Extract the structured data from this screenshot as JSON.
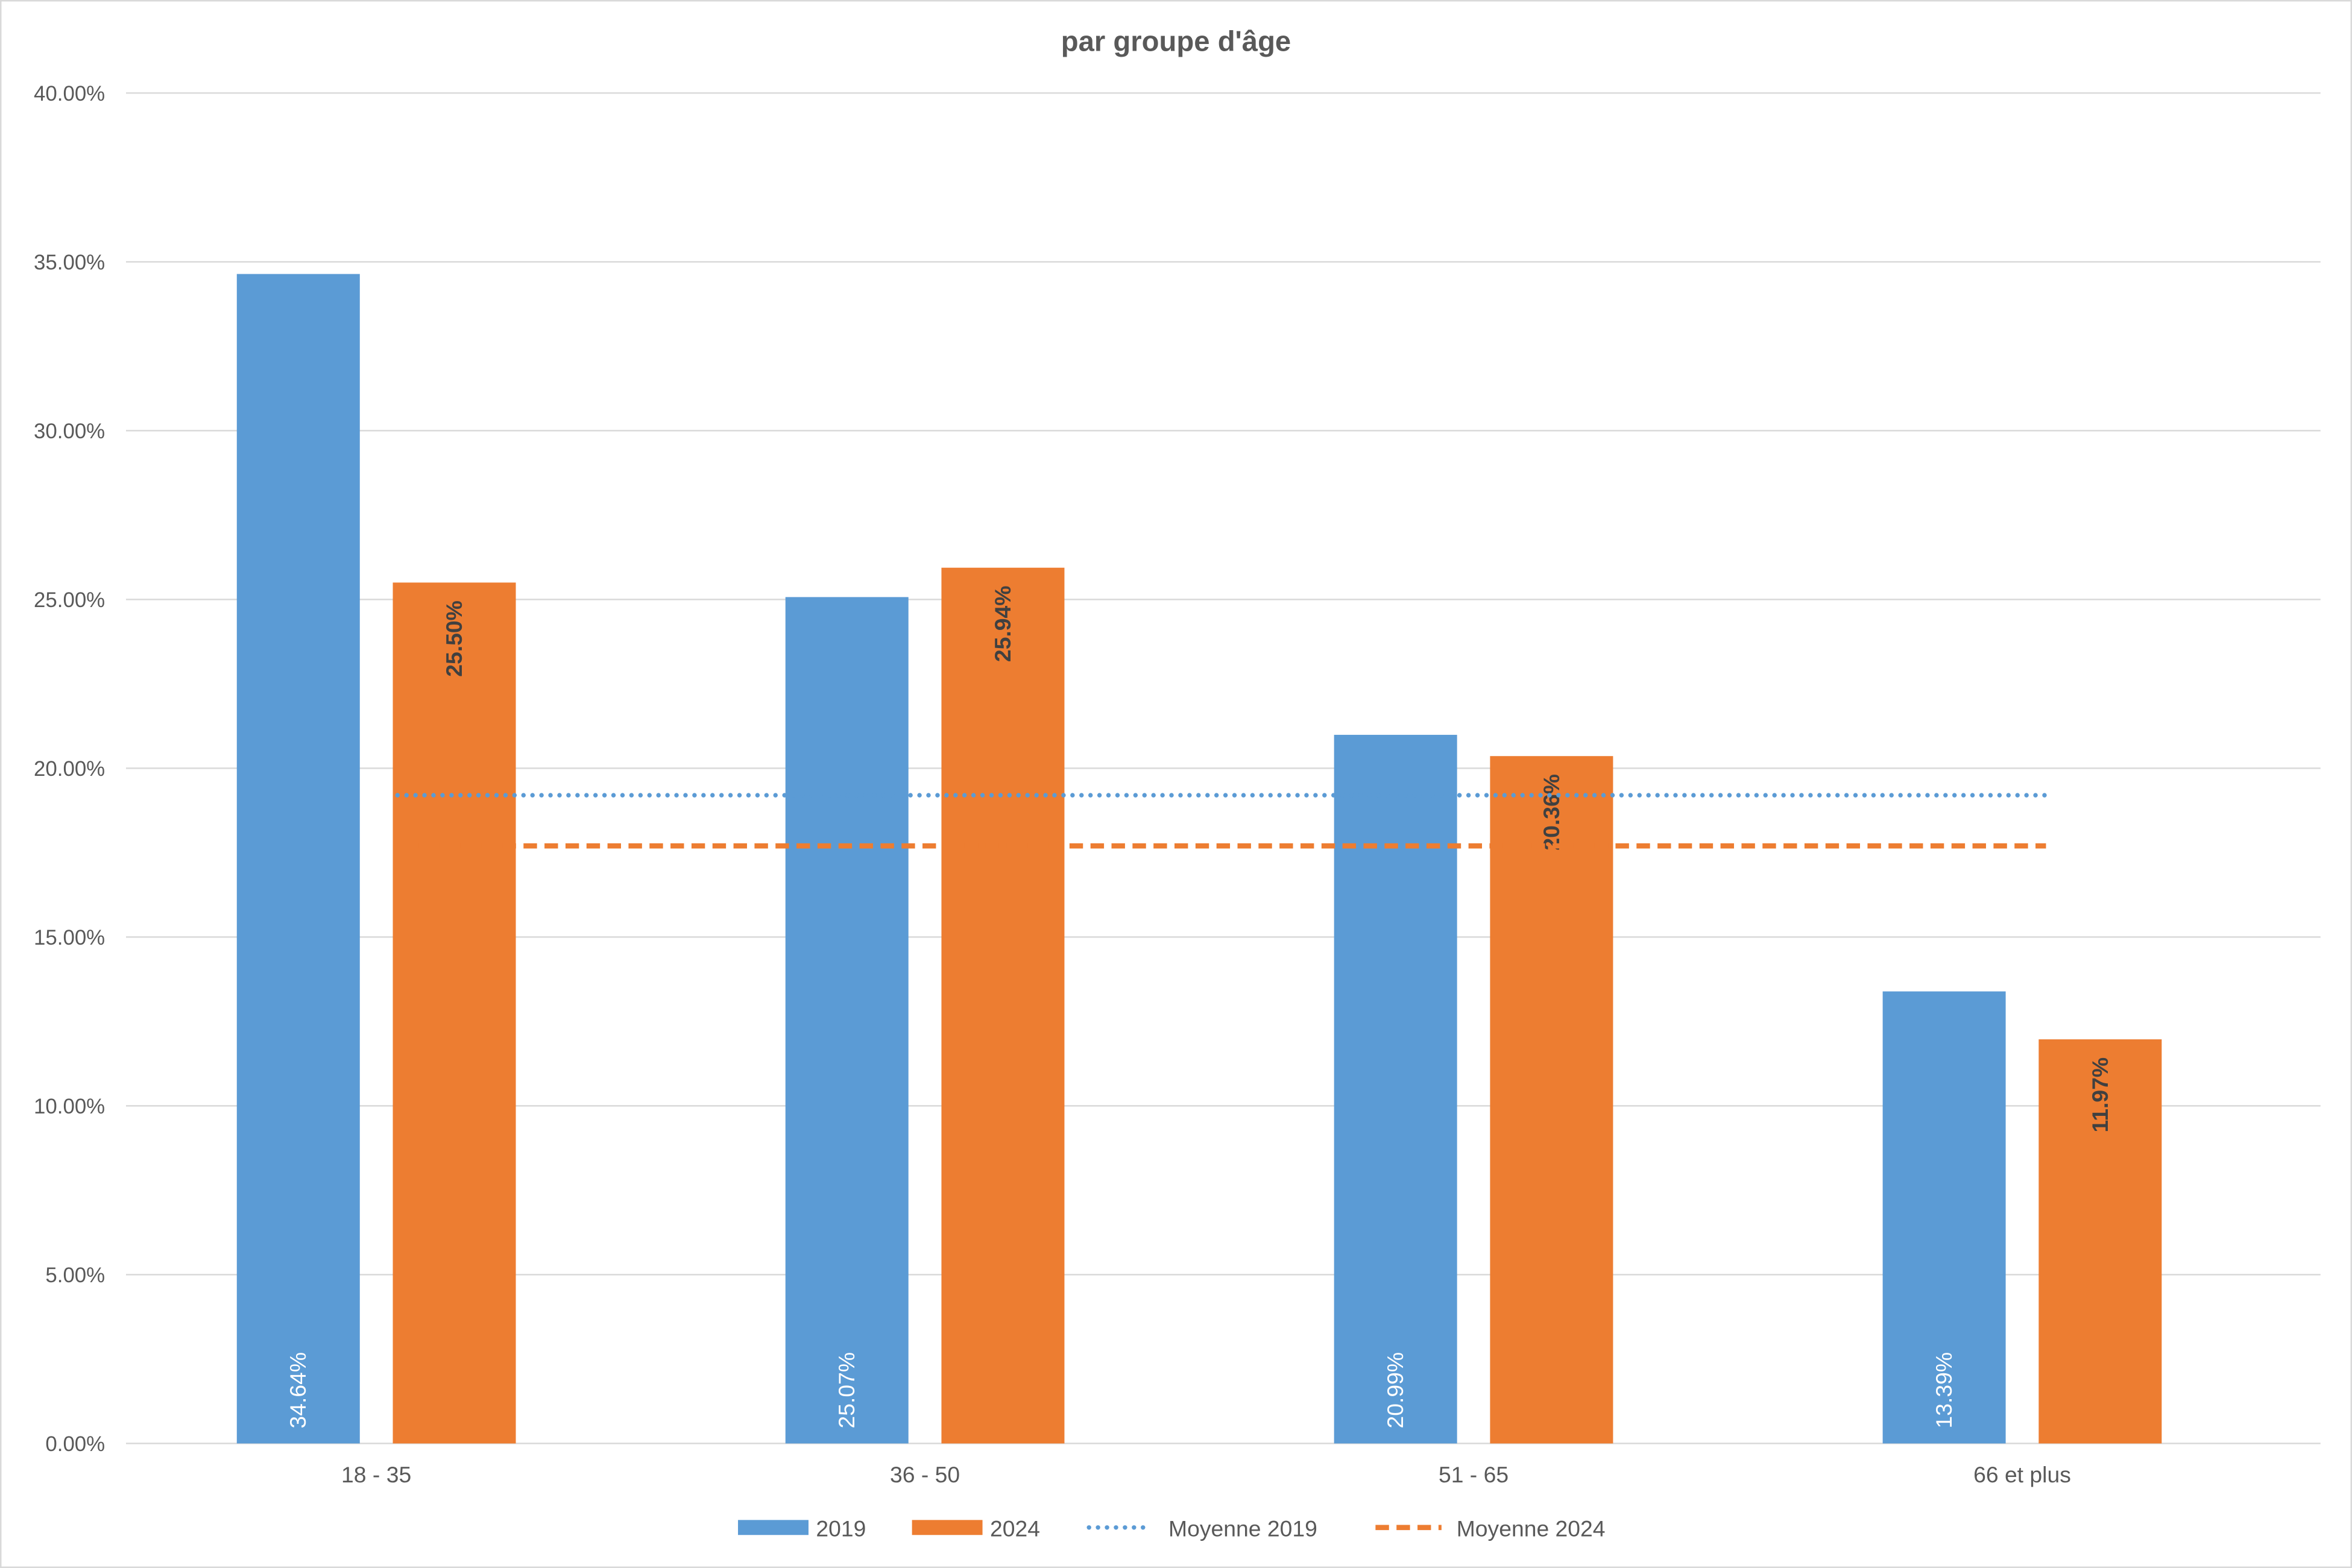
{
  "chart_data": {
    "type": "bar",
    "title": "par groupe d'âge",
    "categories": [
      "18 - 35",
      "36 - 50",
      "51 - 65",
      "66 et plus"
    ],
    "series": [
      {
        "name": "2019",
        "values": [
          34.64,
          25.07,
          20.99,
          13.39
        ],
        "labels": [
          "34.64%",
          "25.07%",
          "20.99%",
          "13.39%"
        ],
        "color": "#5B9BD5"
      },
      {
        "name": "2024",
        "values": [
          25.5,
          25.94,
          20.36,
          11.97
        ],
        "labels": [
          "25.50%",
          "25.94%",
          "20.36%",
          "11.97%"
        ],
        "color": "#ED7D31"
      }
    ],
    "lines": [
      {
        "name": "Moyenne 2019",
        "value": 19.2,
        "style": "dotted",
        "color": "#5B9BD5"
      },
      {
        "name": "Moyenne 2024",
        "value": 17.7,
        "style": "dashed",
        "color": "#ED7D31"
      }
    ],
    "ylim": [
      0,
      40
    ],
    "yticks": [
      "0.00%",
      "5.00%",
      "10.00%",
      "15.00%",
      "20.00%",
      "25.00%",
      "30.00%",
      "35.00%",
      "40.00%"
    ],
    "grid": true,
    "legend": "bottom"
  }
}
